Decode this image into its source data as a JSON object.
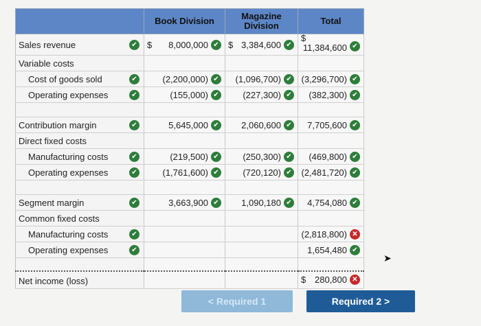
{
  "headers": {
    "book": "Book Division",
    "magazine": "Magazine Division",
    "total": "Total"
  },
  "rows": {
    "sales_revenue": {
      "label": "Sales revenue",
      "book": "8,000,000",
      "magazine": "3,384,600",
      "total": "11,384,600",
      "dollar": "$"
    },
    "variable_costs": {
      "label": "Variable costs"
    },
    "cost_goods_sold": {
      "label": "Cost of goods sold",
      "book": "(2,200,000)",
      "magazine": "(1,096,700)",
      "total": "(3,296,700)"
    },
    "var_operating": {
      "label": "Operating expenses",
      "book": "(155,000)",
      "magazine": "(227,300)",
      "total": "(382,300)"
    },
    "contribution_margin": {
      "label": "Contribution margin",
      "book": "5,645,000",
      "magazine": "2,060,600",
      "total": "7,705,600"
    },
    "direct_fixed": {
      "label": "Direct fixed costs"
    },
    "df_manufacturing": {
      "label": "Manufacturing costs",
      "book": "(219,500)",
      "magazine": "(250,300)",
      "total": "(469,800)"
    },
    "df_operating": {
      "label": "Operating expenses",
      "book": "(1,761,600)",
      "magazine": "(720,120)",
      "total": "(2,481,720)"
    },
    "segment_margin": {
      "label": "Segment margin",
      "book": "3,663,900",
      "magazine": "1,090,180",
      "total": "4,754,080"
    },
    "common_fixed": {
      "label": "Common fixed costs"
    },
    "cf_manufacturing": {
      "label": "Manufacturing costs",
      "total": "(2,818,800)"
    },
    "cf_operating": {
      "label": "Operating expenses",
      "total": "1,654,480"
    },
    "net_income": {
      "label": "Net income (loss)",
      "total": "280,800",
      "dollar": "$"
    }
  },
  "buttons": {
    "prev": "< Required 1",
    "next": "Required 2  >"
  },
  "colors": {
    "check": "#2e7d3b",
    "cross": "#c62828",
    "header": "#5d86c6",
    "next_button": "#1f5c97"
  }
}
